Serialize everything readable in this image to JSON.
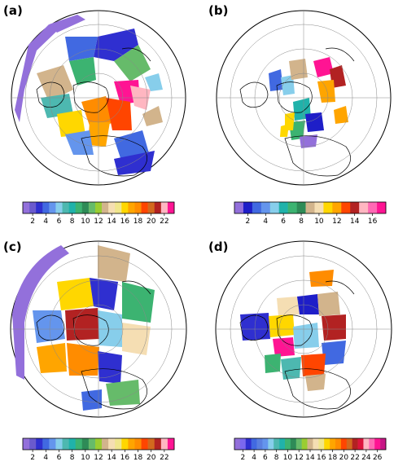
{
  "panels": [
    {
      "label": "(a)",
      "colorbar_ticks": [
        "2",
        "4",
        "6",
        "8",
        "10",
        "12",
        "14",
        "16",
        "18",
        "20",
        "22"
      ],
      "n_colors": 23,
      "colors": [
        "#9370DB",
        "#6A5ACD",
        "#2F2FD0",
        "#4169E1",
        "#6495ED",
        "#87CEEB",
        "#4DB8B0",
        "#20B2AA",
        "#3CB371",
        "#2E8B57",
        "#66BB6A",
        "#9ACD32",
        "#D2B48C",
        "#F5DEB3",
        "#F0E68C",
        "#FFD700",
        "#FFA500",
        "#FF8C00",
        "#FF4500",
        "#D2691E",
        "#B22222",
        "#FFB6C1",
        "#FF1493"
      ]
    },
    {
      "label": "(b)",
      "colorbar_ticks": [
        "2",
        "4",
        "6",
        "8",
        "10",
        "12",
        "14",
        "16"
      ],
      "n_colors": 17,
      "colors": [
        "#9370DB",
        "#1E1EC8",
        "#4169E1",
        "#6495ED",
        "#87CEEB",
        "#20B2AA",
        "#3CB371",
        "#2E8B57",
        "#D2B48C",
        "#F5DEB3",
        "#FFD700",
        "#FFA500",
        "#FF4500",
        "#B22222",
        "#FFB6C1",
        "#FF69B4",
        "#FF1493"
      ]
    },
    {
      "label": "(c)",
      "colorbar_ticks": [
        "2",
        "4",
        "6",
        "8",
        "10",
        "12",
        "14",
        "16",
        "18",
        "20",
        "22"
      ],
      "n_colors": 23,
      "colors": [
        "#9370DB",
        "#6A5ACD",
        "#2F2FD0",
        "#4169E1",
        "#6495ED",
        "#87CEEB",
        "#4DB8B0",
        "#20B2AA",
        "#3CB371",
        "#2E8B57",
        "#66BB6A",
        "#9ACD32",
        "#D2B48C",
        "#F5DEB3",
        "#F0E68C",
        "#FFD700",
        "#FFA500",
        "#FF8C00",
        "#FF4500",
        "#D2691E",
        "#B22222",
        "#FFB6C1",
        "#FF1493"
      ]
    },
    {
      "label": "(d)",
      "colorbar_ticks": [
        "2",
        "4",
        "6",
        "8",
        "10",
        "12",
        "14",
        "16",
        "18",
        "20",
        "22",
        "24",
        "26"
      ],
      "n_colors": 27,
      "colors": [
        "#9370DB",
        "#7B68EE",
        "#2F2FD0",
        "#4169E1",
        "#5A7FE0",
        "#6495ED",
        "#87CEEB",
        "#4DB8B0",
        "#20B2AA",
        "#3CB371",
        "#2E8B57",
        "#66BB6A",
        "#9ACD32",
        "#D2B48C",
        "#F5DEB3",
        "#F0E68C",
        "#FFD700",
        "#FFA500",
        "#FF8C00",
        "#FF4500",
        "#D2691E",
        "#B22222",
        "#DC143C",
        "#FFB6C1",
        "#FF69B4",
        "#FF1493",
        "#C71585"
      ]
    }
  ]
}
